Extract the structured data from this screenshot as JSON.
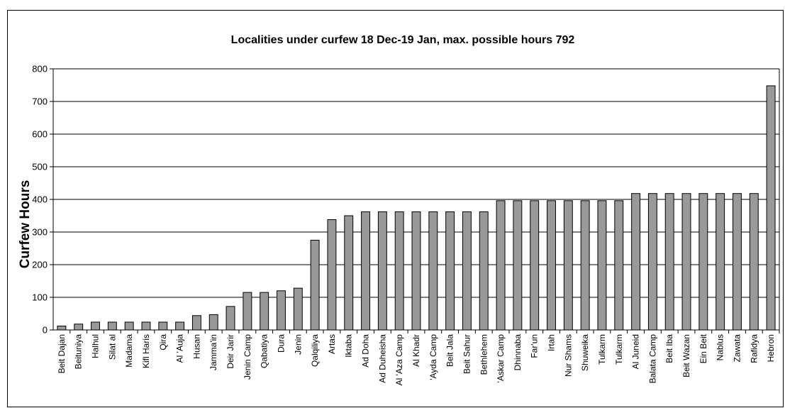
{
  "chart_data": {
    "type": "bar",
    "title": "Localities under curfew  18 Dec-19 Jan, max. possible hours 792",
    "xlabel": "",
    "ylabel": "Curfew Hours",
    "ylim": [
      0,
      800
    ],
    "yticks": [
      0,
      100,
      200,
      300,
      400,
      500,
      600,
      700,
      800
    ],
    "grid": true,
    "legend": "none",
    "bar_color": "#999999",
    "categories": [
      "Beit Dajan",
      "Beituniya",
      "Halhul",
      "Silat al",
      "Madama",
      "Kifl Haris",
      "Qira",
      "Al 'Auja",
      "Husan",
      "Jamma'in",
      "Deir Jarir",
      "Jenin Camp",
      "Qabatiya",
      "Dura",
      "Jenin",
      "Qalqiliya",
      "Artas",
      "Iktaba",
      "Ad Doha",
      "Ad Duheisha",
      "Al 'Aza Camp",
      "Al Khadr",
      "'Ayda Camp",
      "Beit Jala",
      "Beit Sahur",
      "Bethlehem",
      "'Askar Camp",
      "Dhinnaba",
      "Far'un",
      "Irtah",
      "Nur Shams",
      "Shuweika",
      "Tulkarm",
      "Tulkarm",
      "Al Juneid",
      "Balata Camp",
      "Beit Iba",
      "Beit Wazan",
      "Ein Beit",
      "Nablus",
      "Zawata",
      "Rafidya",
      "Hebron"
    ],
    "values": [
      12,
      18,
      24,
      24,
      24,
      24,
      24,
      24,
      44,
      47,
      72,
      115,
      115,
      120,
      128,
      275,
      338,
      350,
      362,
      362,
      362,
      362,
      362,
      362,
      362,
      362,
      396,
      396,
      396,
      396,
      396,
      396,
      396,
      396,
      418,
      418,
      418,
      418,
      418,
      418,
      418,
      418,
      748
    ]
  }
}
